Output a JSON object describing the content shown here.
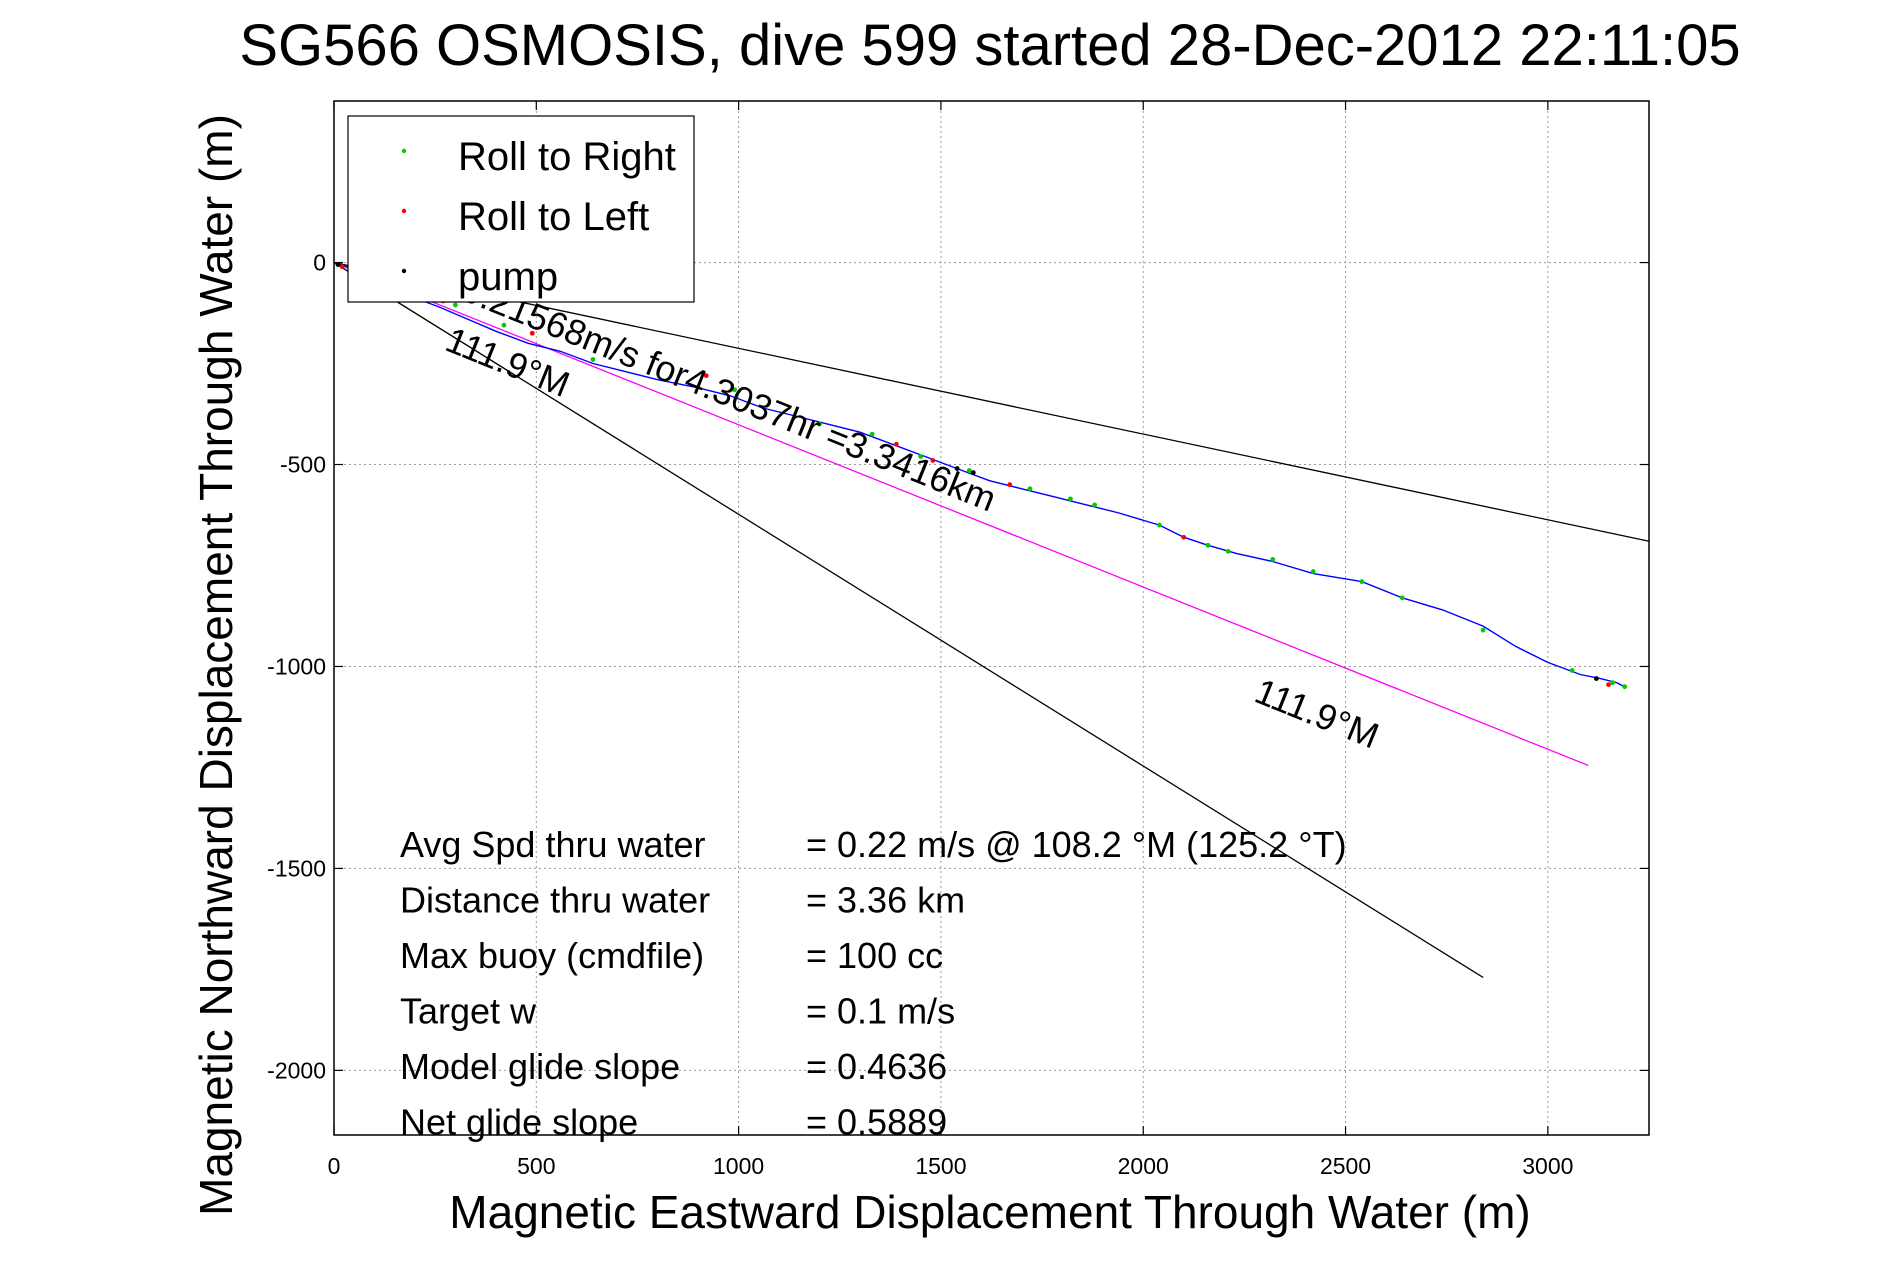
{
  "chart_data": {
    "type": "line",
    "title": "SG566 OSMOSIS, dive 599 started 28-Dec-2012 22:11:05",
    "xlabel": "Magnetic Eastward Displacement Through Water (m)",
    "ylabel": "Magnetic Northward Displacement Through Water (m)",
    "xlim": [
      0,
      3250
    ],
    "ylim": [
      -2160,
      400
    ],
    "xticks": [
      0,
      500,
      1000,
      1500,
      2000,
      2500,
      3000
    ],
    "xtick_labels": [
      "0",
      "500",
      "1000",
      "1500",
      "2000",
      "2500",
      "3000"
    ],
    "yticks": [
      0,
      -500,
      -1000,
      -1500,
      -2000
    ],
    "ytick_labels": [
      "0",
      "-500",
      "-1000",
      "-1500",
      "-2000"
    ],
    "grid": true,
    "legend_position": "top-left",
    "legend": [
      {
        "label": "Roll to Right",
        "color": "#00cc00"
      },
      {
        "label": "Roll to Left",
        "color": "#ff0000"
      },
      {
        "label": "pump",
        "color": "#000000"
      }
    ],
    "track": {
      "color": "#0000ff",
      "x": [
        0,
        60,
        120,
        180,
        260,
        330,
        400,
        480,
        560,
        640,
        720,
        800,
        900,
        980,
        1060,
        1140,
        1220,
        1300,
        1380,
        1460,
        1540,
        1620,
        1700,
        1780,
        1860,
        1940,
        2040,
        2100,
        2160,
        2230,
        2320,
        2420,
        2540,
        2640,
        2740,
        2840,
        2920,
        3000,
        3080,
        3130,
        3170,
        3190
      ],
      "y": [
        0,
        -20,
        -50,
        -80,
        -110,
        -140,
        -170,
        -200,
        -220,
        -250,
        -270,
        -290,
        -310,
        -330,
        -360,
        -380,
        -400,
        -420,
        -450,
        -480,
        -510,
        -540,
        -560,
        -580,
        -600,
        -620,
        -650,
        -680,
        -700,
        -720,
        -740,
        -770,
        -790,
        -830,
        -860,
        -900,
        -950,
        -990,
        -1020,
        -1030,
        -1040,
        -1050
      ]
    },
    "markers": {
      "roll_right": {
        "x": [
          300,
          420,
          640,
          990,
          1200,
          1330,
          1450,
          1570,
          1720,
          1820,
          1880,
          2040,
          2160,
          2210,
          2320,
          2420,
          2540,
          2640,
          2840,
          3060,
          3160,
          3190
        ],
        "y": [
          -105,
          -155,
          -240,
          -315,
          -400,
          -425,
          -480,
          -515,
          -560,
          -585,
          -600,
          -650,
          -700,
          -715,
          -735,
          -765,
          -790,
          -830,
          -910,
          -1010,
          -1040,
          -1050
        ]
      },
      "roll_left": {
        "x": [
          20,
          270,
          490,
          920,
          1390,
          1480,
          1670,
          2100,
          3150
        ],
        "y": [
          -10,
          -95,
          -175,
          -280,
          -450,
          -490,
          -550,
          -680,
          -1045
        ]
      },
      "pump": {
        "x": [
          10,
          1540,
          1580,
          3120
        ],
        "y": [
          -5,
          -510,
          -520,
          -1030
        ]
      }
    },
    "reference_lines": [
      {
        "color": "#000000",
        "x": [
          0,
          3250
        ],
        "y": [
          0,
          -690
        ]
      },
      {
        "color": "#000000",
        "x": [
          0,
          2840
        ],
        "y": [
          0,
          -1770
        ]
      },
      {
        "color": "#ff00ff",
        "x": [
          0,
          3100
        ],
        "y": [
          0,
          -1245
        ]
      }
    ],
    "annotations": [
      {
        "text": "0.21568m/s for4.3037hr =3.3416km",
        "x": 310,
        "y": -90,
        "angle_deg": 21.9
      },
      {
        "text": "111.9°M",
        "x": 270,
        "y": -215,
        "angle_deg": 21.9
      },
      {
        "text": "111.9°M",
        "x": 2270,
        "y": -1085,
        "angle_deg": 21.9
      }
    ],
    "stats": [
      {
        "label": "Avg Spd thru water",
        "value": "=  0.22 m/s @ 108.2 °M (125.2 °T)"
      },
      {
        "label": "Distance thru water",
        "value": "=  3.36 km"
      },
      {
        "label": "Max buoy (cmdfile)",
        "value": "= 100 cc"
      },
      {
        "label": "Target w",
        "value": "= 0.1 m/s"
      },
      {
        "label": "Model glide slope",
        "value": "= 0.4636"
      },
      {
        "label": "Net glide slope",
        "value": "= 0.5889"
      }
    ]
  }
}
